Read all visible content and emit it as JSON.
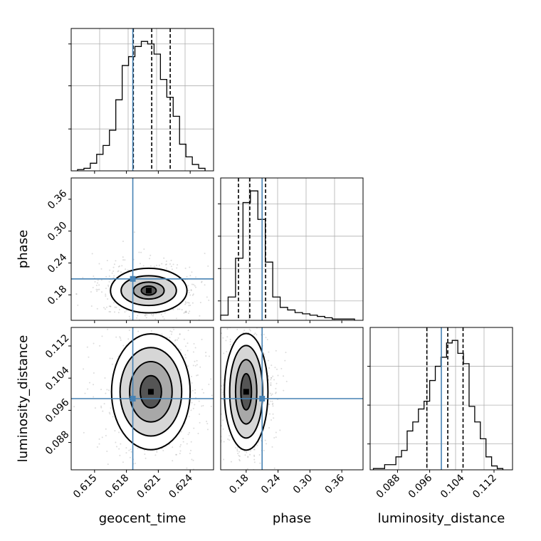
{
  "colors": {
    "truth": "#4682b4",
    "hist": "#000000",
    "grid": "#b0b0b0",
    "scatter": "#9a9a9a"
  },
  "chart_data": {
    "type": "corner",
    "parameters": [
      "geocent_time",
      "phase",
      "luminosity_distance"
    ],
    "truths": {
      "geocent_time": 0.6186,
      "phase": 0.21,
      "luminosity_distance": 0.0989
    },
    "panels": {
      "geocent_time_hist": {
        "xlim": [
          0.6128,
          0.6262
        ],
        "bin_edges": [
          0.6134,
          0.614,
          0.6146,
          0.6152,
          0.6158,
          0.6164,
          0.617,
          0.6176,
          0.6182,
          0.6188,
          0.6194,
          0.62,
          0.6206,
          0.6212,
          0.6218,
          0.6224,
          0.623,
          0.6236,
          0.6242,
          0.6248,
          0.6254
        ],
        "counts": [
          1,
          2,
          6,
          13,
          20,
          32,
          56,
          83,
          90,
          98,
          102,
          100,
          92,
          72,
          58,
          43,
          21,
          11,
          5,
          2
        ],
        "quantile_lines": [
          0.61865,
          0.62038,
          0.62212
        ],
        "ytick_values": [
          33,
          67,
          100
        ],
        "grid": true
      },
      "phase_hist": {
        "xlim": [
          0.132,
          0.4
        ],
        "bin_edges": [
          0.132,
          0.146,
          0.16,
          0.174,
          0.188,
          0.202,
          0.216,
          0.23,
          0.244,
          0.258,
          0.272,
          0.286,
          0.3,
          0.314,
          0.328,
          0.342,
          0.356,
          0.37,
          0.384
        ],
        "counts": [
          4,
          18,
          48,
          91,
          100,
          78,
          45,
          18,
          10,
          8,
          6,
          5,
          4,
          3,
          2,
          1,
          1,
          1
        ],
        "quantile_lines": [
          0.1655,
          0.1868,
          0.2165
        ],
        "ytick_values": [
          15,
          40,
          65,
          90
        ],
        "grid": true
      },
      "luminosity_distance_hist": {
        "xlim": [
          0.0812,
          0.1166
        ],
        "bin_edges": [
          0.082,
          0.0834,
          0.0848,
          0.0862,
          0.0876,
          0.089,
          0.0904,
          0.0918,
          0.0932,
          0.0946,
          0.096,
          0.0974,
          0.0988,
          0.1002,
          0.1016,
          0.103,
          0.1044,
          0.1058,
          0.1072,
          0.1086,
          0.11,
          0.1114,
          0.1128,
          0.1142
        ],
        "counts": [
          1,
          1,
          4,
          4,
          10,
          15,
          30,
          37,
          47,
          53,
          69,
          80,
          87,
          98,
          100,
          90,
          82,
          49,
          37,
          24,
          10,
          3,
          1
        ],
        "quantile_lines": [
          0.0953,
          0.1005,
          0.1043
        ],
        "ytick_values": [
          20,
          50,
          80
        ],
        "grid": true
      },
      "phase_vs_geocent_time": {
        "xlim": [
          0.6128,
          0.6262
        ],
        "ylim": [
          0.132,
          0.4
        ],
        "peak": [
          0.6201,
          0.188
        ],
        "contours": [
          {
            "rx": 0.0007,
            "ry": 0.0085
          },
          {
            "rx": 0.00145,
            "ry": 0.016
          },
          {
            "rx": 0.0026,
            "ry": 0.028
          },
          {
            "rx": 0.0036,
            "ry": 0.042
          }
        ]
      },
      "luminosity_distance_vs_geocent_time": {
        "xlim": [
          0.6128,
          0.6262
        ],
        "ylim": [
          0.0812,
          0.1166
        ],
        "peak": [
          0.6203,
          0.1006
        ],
        "contours": [
          {
            "rx": 0.001,
            "ry": 0.004
          },
          {
            "rx": 0.002,
            "ry": 0.0075
          },
          {
            "rx": 0.0029,
            "ry": 0.011
          },
          {
            "rx": 0.0037,
            "ry": 0.0144
          }
        ]
      },
      "luminosity_distance_vs_phase": {
        "xlim": [
          0.132,
          0.4
        ],
        "ylim": [
          0.0812,
          0.1166
        ],
        "peak": [
          0.18,
          0.1006
        ],
        "contours": [
          {
            "rx": 0.01,
            "ry": 0.0045
          },
          {
            "rx": 0.02,
            "ry": 0.008
          },
          {
            "rx": 0.031,
            "ry": 0.0115
          },
          {
            "rx": 0.041,
            "ry": 0.0145
          }
        ]
      }
    },
    "x_ticks": {
      "geocent_time": [
        "0.615",
        "0.618",
        "0.621",
        "0.624"
      ],
      "phase": [
        "0.18",
        "0.24",
        "0.30",
        "0.36"
      ],
      "luminosity_distance": [
        "0.088",
        "0.096",
        "0.104",
        "0.112"
      ]
    },
    "y_ticks": {
      "phase": [
        "0.18",
        "0.24",
        "0.30",
        "0.36"
      ],
      "luminosity_distance": [
        "0.088",
        "0.096",
        "0.104",
        "0.112"
      ]
    },
    "xlabels": [
      "geocent_time",
      "phase",
      "luminosity_distance"
    ],
    "ylabels": [
      "phase",
      "luminosity_distance"
    ]
  }
}
